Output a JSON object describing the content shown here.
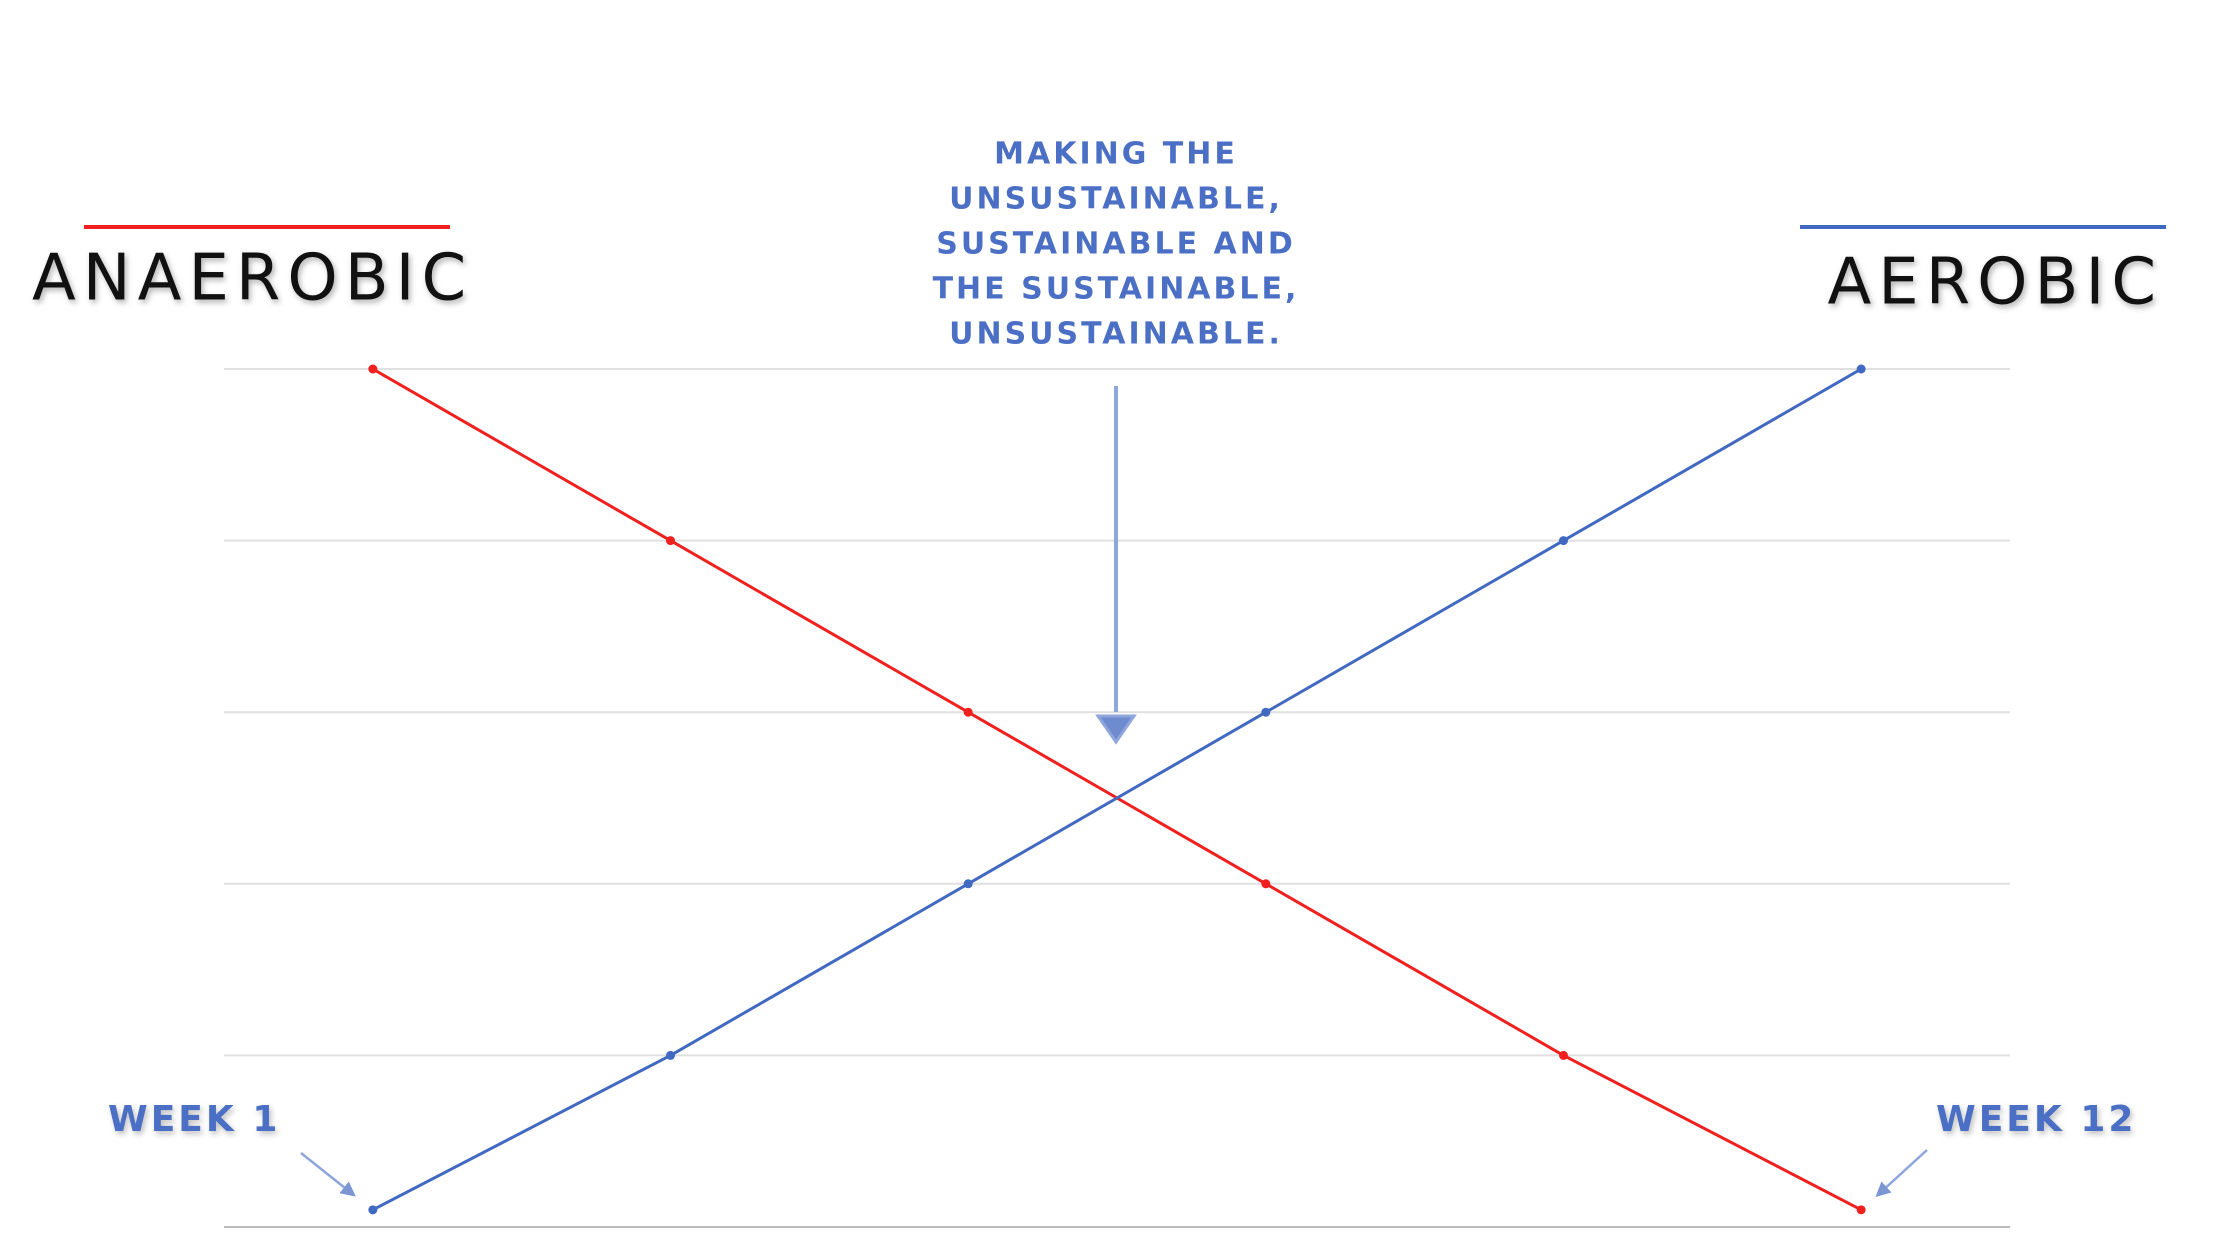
{
  "chart_data": {
    "type": "line",
    "categories": [
      null,
      null,
      null,
      null,
      null,
      null
    ],
    "series": [
      {
        "name": "ANAEROBIC",
        "color": "#f0201e",
        "values": [
          5,
          4,
          3,
          2,
          1,
          0.1
        ]
      },
      {
        "name": "AEROBIC",
        "color": "#4169c1",
        "values": [
          0.1,
          1,
          2,
          3,
          4,
          5
        ]
      }
    ],
    "ylim": [
      0,
      5
    ],
    "yticks": [
      0,
      1,
      2,
      3,
      4,
      5
    ],
    "grid": true,
    "annotation": [
      "MAKING THE",
      "UNSUSTAINABLE,",
      "SUSTAINABLE AND",
      "THE SUSTAINABLE,",
      "UNSUSTAINABLE."
    ],
    "start_label": "WEEK 1",
    "end_label": "WEEK 12"
  }
}
